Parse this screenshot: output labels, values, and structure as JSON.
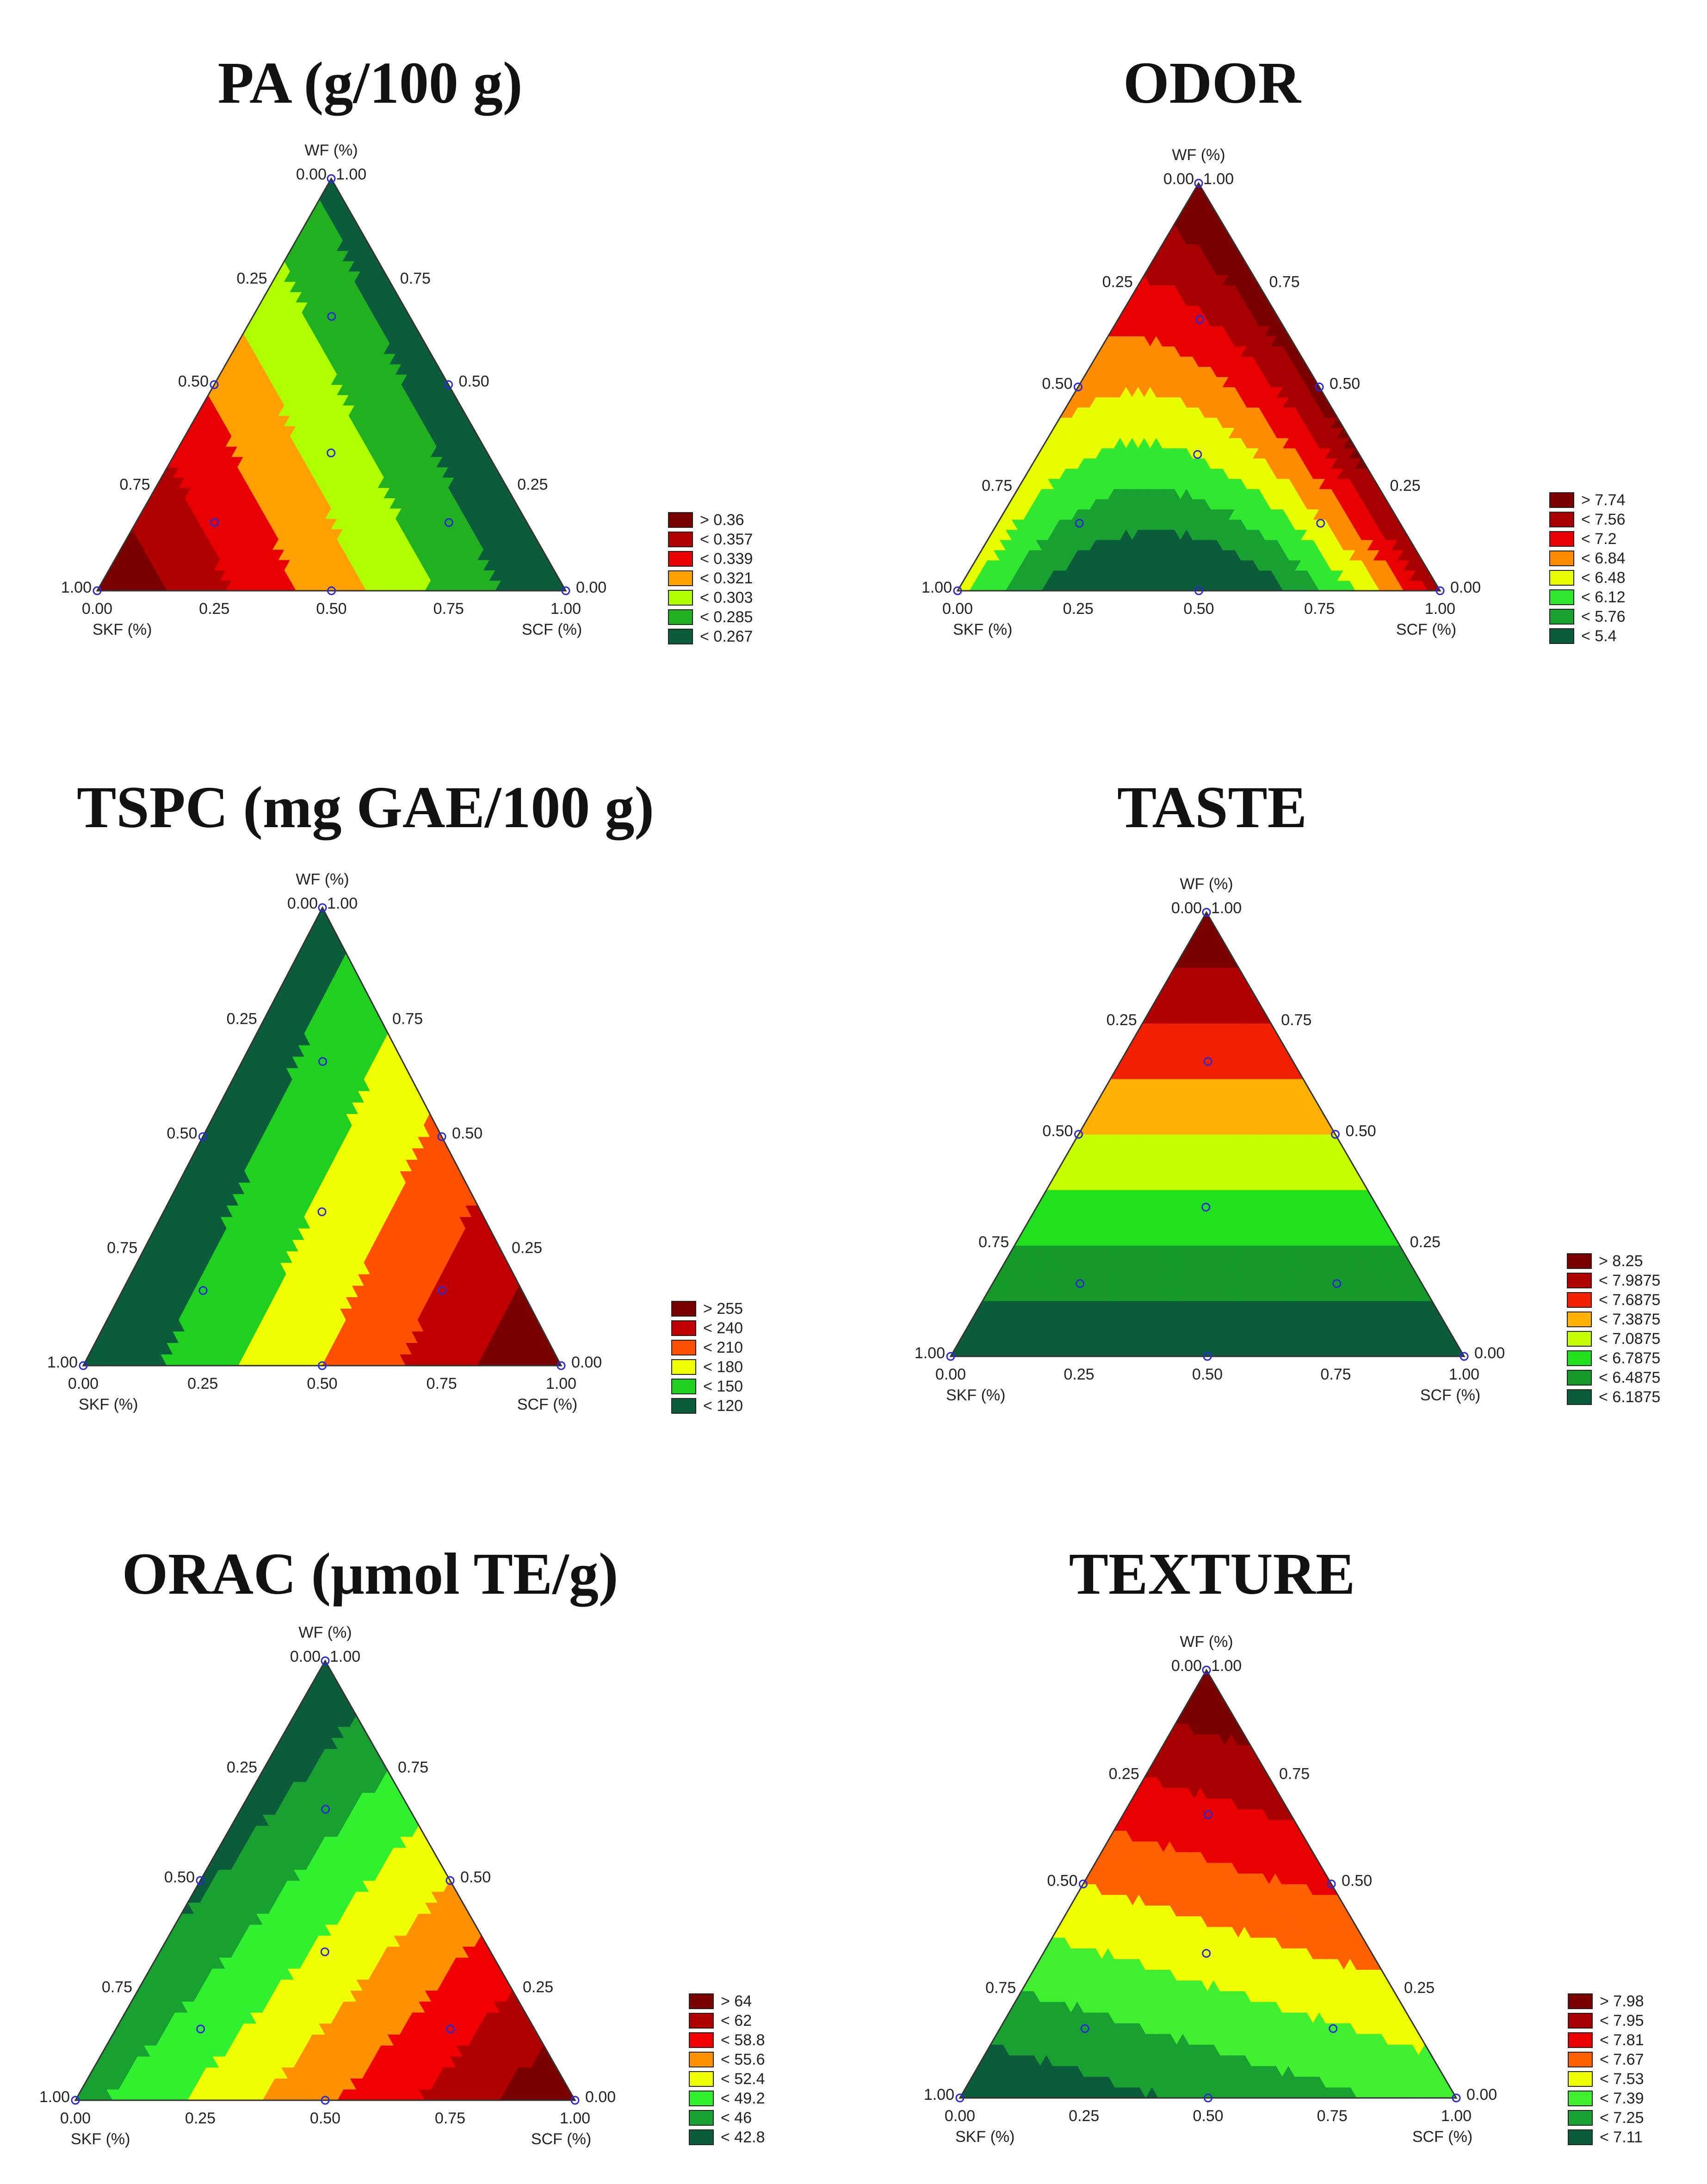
{
  "chart_data": [
    {
      "type": "heatmap",
      "subtype": "ternary-contour",
      "title": "PA (g/100 g)",
      "axes": {
        "top": "WF (%)",
        "left": "SKF (%)",
        "right": "SCF (%)"
      },
      "ticks": [
        "0.00",
        "0.25",
        "0.50",
        "0.75",
        "1.00"
      ],
      "design_points": [
        {
          "wf": 1.0,
          "skf": 0.0,
          "scf": 0.0
        },
        {
          "wf": 0.0,
          "skf": 1.0,
          "scf": 0.0
        },
        {
          "wf": 0.0,
          "skf": 0.0,
          "scf": 1.0
        },
        {
          "wf": 0.5,
          "skf": 0.5,
          "scf": 0.0
        },
        {
          "wf": 0.5,
          "skf": 0.0,
          "scf": 0.5
        },
        {
          "wf": 0.0,
          "skf": 0.5,
          "scf": 0.5
        },
        {
          "wf": 0.667,
          "skf": 0.167,
          "scf": 0.167
        },
        {
          "wf": 0.333,
          "skf": 0.333,
          "scf": 0.333
        },
        {
          "wf": 0.167,
          "skf": 0.667,
          "scf": 0.167
        },
        {
          "wf": 0.167,
          "skf": 0.167,
          "scf": 0.667
        }
      ],
      "legend": [
        {
          "label": "> 0.36",
          "color": "#7a0000"
        },
        {
          "label": "< 0.357",
          "color": "#b00000"
        },
        {
          "label": "< 0.339",
          "color": "#e80000"
        },
        {
          "label": "< 0.321",
          "color": "#ffa000"
        },
        {
          "label": "< 0.303",
          "color": "#b0ff00"
        },
        {
          "label": "< 0.285",
          "color": "#20b020"
        },
        {
          "label": "< 0.267",
          "color": "#0a5c3a"
        }
      ],
      "corner_levels": {
        "wf": 0.1,
        "skf": 1.0,
        "scf": 0.0
      },
      "bias": 0.0
    },
    {
      "type": "heatmap",
      "subtype": "ternary-contour",
      "title": "ODOR",
      "axes": {
        "top": "WF (%)",
        "left": "SKF (%)",
        "right": "SCF (%)"
      },
      "ticks": [
        "0.00",
        "0.25",
        "0.50",
        "0.75",
        "1.00"
      ],
      "design_points": [
        {
          "wf": 1.0,
          "skf": 0.0,
          "scf": 0.0
        },
        {
          "wf": 0.0,
          "skf": 1.0,
          "scf": 0.0
        },
        {
          "wf": 0.0,
          "skf": 0.0,
          "scf": 1.0
        },
        {
          "wf": 0.5,
          "skf": 0.5,
          "scf": 0.0
        },
        {
          "wf": 0.5,
          "skf": 0.0,
          "scf": 0.5
        },
        {
          "wf": 0.0,
          "skf": 0.5,
          "scf": 0.5
        },
        {
          "wf": 0.667,
          "skf": 0.167,
          "scf": 0.167
        },
        {
          "wf": 0.333,
          "skf": 0.333,
          "scf": 0.333
        },
        {
          "wf": 0.167,
          "skf": 0.667,
          "scf": 0.167
        },
        {
          "wf": 0.167,
          "skf": 0.167,
          "scf": 0.667
        }
      ],
      "legend": [
        {
          "label": "> 7.74",
          "color": "#7a0000"
        },
        {
          "label": "< 7.56",
          "color": "#a80000"
        },
        {
          "label": "< 7.2",
          "color": "#e80000"
        },
        {
          "label": "< 6.84",
          "color": "#ff8c00"
        },
        {
          "label": "< 6.48",
          "color": "#e8ff00"
        },
        {
          "label": "< 6.12",
          "color": "#30e830"
        },
        {
          "label": "< 5.76",
          "color": "#18a030"
        },
        {
          "label": "< 5.4",
          "color": "#0a5c3a"
        }
      ],
      "corner_levels": {
        "wf": 1.0,
        "skf": 0.45,
        "scf": 0.85
      },
      "bias": -0.7
    },
    {
      "type": "heatmap",
      "subtype": "ternary-contour",
      "title": "TSPC (mg GAE/100 g)",
      "axes": {
        "top": "WF (%)",
        "left": "SKF (%)",
        "right": "SCF (%)"
      },
      "ticks": [
        "0.00",
        "0.25",
        "0.50",
        "0.75",
        "1.00"
      ],
      "design_points": [
        {
          "wf": 1.0,
          "skf": 0.0,
          "scf": 0.0
        },
        {
          "wf": 0.0,
          "skf": 1.0,
          "scf": 0.0
        },
        {
          "wf": 0.0,
          "skf": 0.0,
          "scf": 1.0
        },
        {
          "wf": 0.5,
          "skf": 0.5,
          "scf": 0.0
        },
        {
          "wf": 0.5,
          "skf": 0.0,
          "scf": 0.5
        },
        {
          "wf": 0.0,
          "skf": 0.5,
          "scf": 0.5
        },
        {
          "wf": 0.667,
          "skf": 0.167,
          "scf": 0.167
        },
        {
          "wf": 0.333,
          "skf": 0.333,
          "scf": 0.333
        },
        {
          "wf": 0.167,
          "skf": 0.667,
          "scf": 0.167
        },
        {
          "wf": 0.167,
          "skf": 0.167,
          "scf": 0.667
        }
      ],
      "legend": [
        {
          "label": "> 255",
          "color": "#7a0000"
        },
        {
          "label": "< 240",
          "color": "#c00000"
        },
        {
          "label": "< 210",
          "color": "#ff5000"
        },
        {
          "label": "< 180",
          "color": "#f0ff00"
        },
        {
          "label": "< 150",
          "color": "#20d020"
        },
        {
          "label": "< 120",
          "color": "#0a5c3a"
        }
      ],
      "corner_levels": {
        "wf": 0.08,
        "skf": 0.0,
        "scf": 1.0
      },
      "bias": 0.0
    },
    {
      "type": "heatmap",
      "subtype": "ternary-contour",
      "title": "TASTE",
      "axes": {
        "top": "WF (%)",
        "left": "SKF (%)",
        "right": "SCF (%)"
      },
      "ticks": [
        "0.00",
        "0.25",
        "0.50",
        "0.75",
        "1.00"
      ],
      "design_points": [
        {
          "wf": 1.0,
          "skf": 0.0,
          "scf": 0.0
        },
        {
          "wf": 0.0,
          "skf": 1.0,
          "scf": 0.0
        },
        {
          "wf": 0.0,
          "skf": 0.0,
          "scf": 1.0
        },
        {
          "wf": 0.5,
          "skf": 0.5,
          "scf": 0.0
        },
        {
          "wf": 0.5,
          "skf": 0.0,
          "scf": 0.5
        },
        {
          "wf": 0.0,
          "skf": 0.5,
          "scf": 0.5
        },
        {
          "wf": 0.667,
          "skf": 0.167,
          "scf": 0.167
        },
        {
          "wf": 0.333,
          "skf": 0.333,
          "scf": 0.333
        },
        {
          "wf": 0.167,
          "skf": 0.667,
          "scf": 0.167
        },
        {
          "wf": 0.167,
          "skf": 0.167,
          "scf": 0.667
        }
      ],
      "legend": [
        {
          "label": "> 8.25",
          "color": "#7a0000"
        },
        {
          "label": "< 7.9875",
          "color": "#b00000"
        },
        {
          "label": "< 7.6875",
          "color": "#f02000"
        },
        {
          "label": "< 7.3875",
          "color": "#ffb000"
        },
        {
          "label": "< 7.0875",
          "color": "#c8ff00"
        },
        {
          "label": "< 6.7875",
          "color": "#20e020"
        },
        {
          "label": "< 6.4875",
          "color": "#159a2a"
        },
        {
          "label": "< 6.1875",
          "color": "#0a5c3a"
        }
      ],
      "corner_levels": {
        "wf": 1.0,
        "skf": 0.0,
        "scf": 0.0
      },
      "bias": 0.0
    },
    {
      "type": "heatmap",
      "subtype": "ternary-contour",
      "title": "ORAC (μmol TE/g)",
      "axes": {
        "top": "WF (%)",
        "left": "SKF (%)",
        "right": "SCF (%)"
      },
      "ticks": [
        "0.00",
        "0.25",
        "0.50",
        "0.75",
        "1.00"
      ],
      "design_points": [
        {
          "wf": 1.0,
          "skf": 0.0,
          "scf": 0.0
        },
        {
          "wf": 0.0,
          "skf": 1.0,
          "scf": 0.0
        },
        {
          "wf": 0.0,
          "skf": 0.0,
          "scf": 1.0
        },
        {
          "wf": 0.5,
          "skf": 0.5,
          "scf": 0.0
        },
        {
          "wf": 0.5,
          "skf": 0.0,
          "scf": 0.5
        },
        {
          "wf": 0.0,
          "skf": 0.5,
          "scf": 0.5
        },
        {
          "wf": 0.667,
          "skf": 0.167,
          "scf": 0.167
        },
        {
          "wf": 0.333,
          "skf": 0.333,
          "scf": 0.333
        },
        {
          "wf": 0.167,
          "skf": 0.667,
          "scf": 0.167
        },
        {
          "wf": 0.167,
          "skf": 0.167,
          "scf": 0.667
        }
      ],
      "legend": [
        {
          "label": "> 64",
          "color": "#7a0000"
        },
        {
          "label": "< 62",
          "color": "#b00000"
        },
        {
          "label": "< 58.8",
          "color": "#f00000"
        },
        {
          "label": "< 55.6",
          "color": "#ff9000"
        },
        {
          "label": "< 52.4",
          "color": "#f0ff00"
        },
        {
          "label": "< 49.2",
          "color": "#30f030"
        },
        {
          "label": "< 46",
          "color": "#18a030"
        },
        {
          "label": "< 42.8",
          "color": "#0a5c3a"
        }
      ],
      "corner_levels": {
        "wf": 0.0,
        "skf": 0.2,
        "scf": 1.0
      },
      "bias": 0.0
    },
    {
      "type": "heatmap",
      "subtype": "ternary-contour",
      "title": "TEXTURE",
      "axes": {
        "top": "WF (%)",
        "left": "SKF (%)",
        "right": "SCF (%)"
      },
      "ticks": [
        "0.00",
        "0.25",
        "0.50",
        "0.75",
        "1.00"
      ],
      "design_points": [
        {
          "wf": 1.0,
          "skf": 0.0,
          "scf": 0.0
        },
        {
          "wf": 0.0,
          "skf": 1.0,
          "scf": 0.0
        },
        {
          "wf": 0.0,
          "skf": 0.0,
          "scf": 1.0
        },
        {
          "wf": 0.5,
          "skf": 0.5,
          "scf": 0.0
        },
        {
          "wf": 0.5,
          "skf": 0.0,
          "scf": 0.5
        },
        {
          "wf": 0.0,
          "skf": 0.5,
          "scf": 0.5
        },
        {
          "wf": 0.667,
          "skf": 0.167,
          "scf": 0.167
        },
        {
          "wf": 0.333,
          "skf": 0.333,
          "scf": 0.333
        },
        {
          "wf": 0.167,
          "skf": 0.667,
          "scf": 0.167
        },
        {
          "wf": 0.167,
          "skf": 0.167,
          "scf": 0.667
        }
      ],
      "legend": [
        {
          "label": "> 7.98",
          "color": "#7a0000"
        },
        {
          "label": "< 7.95",
          "color": "#a80000"
        },
        {
          "label": "< 7.81",
          "color": "#e80000"
        },
        {
          "label": "< 7.67",
          "color": "#ff6000"
        },
        {
          "label": "< 7.53",
          "color": "#f0ff00"
        },
        {
          "label": "< 7.39",
          "color": "#40f030"
        },
        {
          "label": "< 7.25",
          "color": "#18a030"
        },
        {
          "label": "< 7.11",
          "color": "#0a5c3a"
        }
      ],
      "corner_levels": {
        "wf": 1.0,
        "skf": 0.0,
        "scf": 0.3
      },
      "bias": 0.0
    }
  ]
}
